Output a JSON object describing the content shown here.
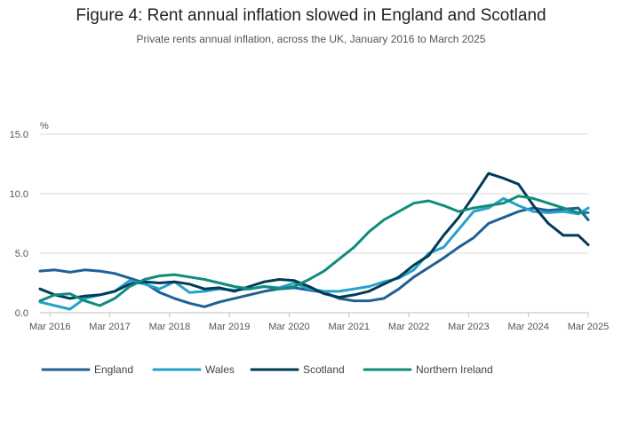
{
  "title": "Figure 4: Rent annual inflation slowed in England and Scotland",
  "subtitle": "Private rents annual inflation, across the UK, January 2016 to March 2025",
  "colors": {
    "England": "#206095",
    "Wales": "#27a0cc",
    "Scotland": "#003c57",
    "Northern Ireland": "#118c7b",
    "grid": "#d9d9d9",
    "axis": "#bfbfbf"
  },
  "chart_data": {
    "type": "line",
    "title": "Figure 4: Rent annual inflation slowed in England and Scotland",
    "subtitle": "Private rents annual inflation, across the UK, January 2016 to March 2025",
    "ylabel": "%",
    "xlabel": "",
    "ylim": [
      0,
      15
    ],
    "yticks": [
      0,
      5,
      10,
      15
    ],
    "ytick_labels": [
      "0.0",
      "5.0",
      "10.0",
      "15.0"
    ],
    "xlim": [
      "2016-01",
      "2025-03"
    ],
    "xticks": [
      "2016-03",
      "2017-03",
      "2018-03",
      "2019-03",
      "2020-03",
      "2021-03",
      "2022-03",
      "2023-03",
      "2024-03",
      "2025-03"
    ],
    "xtick_labels": [
      "Mar 2016",
      "Mar 2017",
      "Mar 2018",
      "Mar 2019",
      "Mar 2020",
      "Mar 2021",
      "Mar 2022",
      "Mar 2023",
      "Mar 2024",
      "Mar 2025"
    ],
    "grid": true,
    "legend_position": "bottom",
    "series": [
      {
        "name": "England",
        "points": [
          [
            "2016-01",
            3.5
          ],
          [
            "2016-04",
            3.6
          ],
          [
            "2016-07",
            3.4
          ],
          [
            "2016-10",
            3.6
          ],
          [
            "2017-01",
            3.5
          ],
          [
            "2017-04",
            3.3
          ],
          [
            "2017-07",
            2.9
          ],
          [
            "2017-10",
            2.5
          ],
          [
            "2018-01",
            1.7
          ],
          [
            "2018-04",
            1.2
          ],
          [
            "2018-07",
            0.8
          ],
          [
            "2018-10",
            0.5
          ],
          [
            "2019-01",
            0.9
          ],
          [
            "2019-04",
            1.2
          ],
          [
            "2019-07",
            1.5
          ],
          [
            "2019-10",
            1.8
          ],
          [
            "2020-01",
            2.0
          ],
          [
            "2020-04",
            2.1
          ],
          [
            "2020-07",
            1.9
          ],
          [
            "2020-10",
            1.7
          ],
          [
            "2021-01",
            1.2
          ],
          [
            "2021-04",
            1.0
          ],
          [
            "2021-07",
            1.0
          ],
          [
            "2021-10",
            1.2
          ],
          [
            "2022-01",
            2.0
          ],
          [
            "2022-04",
            3.0
          ],
          [
            "2022-07",
            3.8
          ],
          [
            "2022-10",
            4.6
          ],
          [
            "2023-01",
            5.5
          ],
          [
            "2023-04",
            6.3
          ],
          [
            "2023-07",
            7.5
          ],
          [
            "2023-10",
            8.0
          ],
          [
            "2024-01",
            8.5
          ],
          [
            "2024-04",
            8.8
          ],
          [
            "2024-07",
            8.6
          ],
          [
            "2024-10",
            8.7
          ],
          [
            "2025-01",
            8.8
          ],
          [
            "2025-03",
            7.8
          ]
        ]
      },
      {
        "name": "Wales",
        "points": [
          [
            "2016-01",
            0.9
          ],
          [
            "2016-04",
            0.6
          ],
          [
            "2016-07",
            0.3
          ],
          [
            "2016-10",
            1.2
          ],
          [
            "2017-01",
            1.5
          ],
          [
            "2017-04",
            1.8
          ],
          [
            "2017-07",
            2.7
          ],
          [
            "2017-10",
            2.4
          ],
          [
            "2018-01",
            2.0
          ],
          [
            "2018-04",
            2.6
          ],
          [
            "2018-07",
            1.7
          ],
          [
            "2018-10",
            1.8
          ],
          [
            "2019-01",
            2.0
          ],
          [
            "2019-04",
            1.9
          ],
          [
            "2019-07",
            2.0
          ],
          [
            "2019-10",
            2.2
          ],
          [
            "2020-01",
            2.1
          ],
          [
            "2020-04",
            2.5
          ],
          [
            "2020-07",
            2.0
          ],
          [
            "2020-10",
            1.8
          ],
          [
            "2021-01",
            1.8
          ],
          [
            "2021-04",
            2.0
          ],
          [
            "2021-07",
            2.2
          ],
          [
            "2021-10",
            2.6
          ],
          [
            "2022-01",
            2.9
          ],
          [
            "2022-04",
            3.6
          ],
          [
            "2022-07",
            5.0
          ],
          [
            "2022-10",
            5.5
          ],
          [
            "2023-01",
            7.0
          ],
          [
            "2023-04",
            8.5
          ],
          [
            "2023-07",
            8.8
          ],
          [
            "2023-10",
            9.6
          ],
          [
            "2024-01",
            9.0
          ],
          [
            "2024-04",
            8.5
          ],
          [
            "2024-07",
            8.4
          ],
          [
            "2024-10",
            8.5
          ],
          [
            "2025-01",
            8.3
          ],
          [
            "2025-03",
            8.8
          ]
        ]
      },
      {
        "name": "Scotland",
        "points": [
          [
            "2016-01",
            2.0
          ],
          [
            "2016-04",
            1.5
          ],
          [
            "2016-07",
            1.2
          ],
          [
            "2016-10",
            1.4
          ],
          [
            "2017-01",
            1.5
          ],
          [
            "2017-04",
            1.8
          ],
          [
            "2017-07",
            2.4
          ],
          [
            "2017-10",
            2.6
          ],
          [
            "2018-01",
            2.5
          ],
          [
            "2018-04",
            2.6
          ],
          [
            "2018-07",
            2.4
          ],
          [
            "2018-10",
            2.0
          ],
          [
            "2019-01",
            2.1
          ],
          [
            "2019-04",
            1.8
          ],
          [
            "2019-07",
            2.2
          ],
          [
            "2019-10",
            2.6
          ],
          [
            "2020-01",
            2.8
          ],
          [
            "2020-04",
            2.7
          ],
          [
            "2020-07",
            2.2
          ],
          [
            "2020-10",
            1.6
          ],
          [
            "2021-01",
            1.3
          ],
          [
            "2021-04",
            1.5
          ],
          [
            "2021-07",
            1.8
          ],
          [
            "2021-10",
            2.4
          ],
          [
            "2022-01",
            3.0
          ],
          [
            "2022-04",
            4.0
          ],
          [
            "2022-07",
            4.8
          ],
          [
            "2022-10",
            6.5
          ],
          [
            "2023-01",
            8.0
          ],
          [
            "2023-04",
            9.8
          ],
          [
            "2023-07",
            11.7
          ],
          [
            "2023-10",
            11.3
          ],
          [
            "2024-01",
            10.8
          ],
          [
            "2024-04",
            9.0
          ],
          [
            "2024-07",
            7.5
          ],
          [
            "2024-10",
            6.5
          ],
          [
            "2025-01",
            6.5
          ],
          [
            "2025-03",
            5.7
          ]
        ]
      },
      {
        "name": "Northern Ireland",
        "points": [
          [
            "2016-01",
            1.0
          ],
          [
            "2016-04",
            1.5
          ],
          [
            "2016-07",
            1.6
          ],
          [
            "2016-10",
            1.0
          ],
          [
            "2017-01",
            0.6
          ],
          [
            "2017-04",
            1.2
          ],
          [
            "2017-07",
            2.2
          ],
          [
            "2017-10",
            2.8
          ],
          [
            "2018-01",
            3.1
          ],
          [
            "2018-04",
            3.2
          ],
          [
            "2018-07",
            3.0
          ],
          [
            "2018-10",
            2.8
          ],
          [
            "2019-01",
            2.5
          ],
          [
            "2019-04",
            2.2
          ],
          [
            "2019-07",
            2.0
          ],
          [
            "2019-10",
            2.2
          ],
          [
            "2020-01",
            2.0
          ],
          [
            "2020-04",
            2.2
          ],
          [
            "2020-07",
            2.8
          ],
          [
            "2020-10",
            3.5
          ],
          [
            "2021-01",
            4.5
          ],
          [
            "2021-04",
            5.5
          ],
          [
            "2021-07",
            6.8
          ],
          [
            "2021-10",
            7.8
          ],
          [
            "2022-01",
            8.5
          ],
          [
            "2022-04",
            9.2
          ],
          [
            "2022-07",
            9.4
          ],
          [
            "2022-10",
            9.0
          ],
          [
            "2023-01",
            8.5
          ],
          [
            "2023-04",
            8.8
          ],
          [
            "2023-07",
            9.0
          ],
          [
            "2023-10",
            9.2
          ],
          [
            "2024-01",
            9.8
          ],
          [
            "2024-04",
            9.6
          ],
          [
            "2024-07",
            9.2
          ],
          [
            "2024-10",
            8.8
          ],
          [
            "2025-01",
            8.4
          ],
          [
            "2025-03",
            8.4
          ]
        ]
      }
    ]
  }
}
